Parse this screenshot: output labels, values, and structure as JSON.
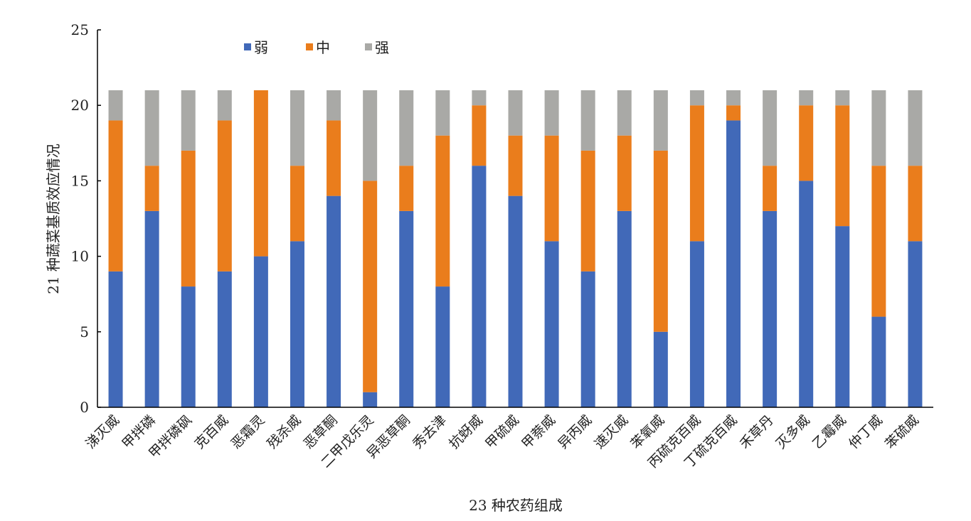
{
  "chart_data": {
    "type": "bar",
    "stacked": true,
    "title": "",
    "xlabel": "23 种农药组成",
    "ylabel": "21 种蔬菜基质效应情况",
    "ylim": [
      0,
      25
    ],
    "yticks": [
      0,
      5,
      10,
      15,
      20,
      25
    ],
    "grid": false,
    "legend_position": "top-left",
    "categories": [
      "涕灭威",
      "甲拌磷",
      "甲拌磷砜",
      "克百威",
      "恶霜灵",
      "残杀威",
      "恶草酮",
      "二甲戊乐灵",
      "异恶草酮",
      "秀去津",
      "抗蚜威",
      "甲硫威",
      "甲萘威",
      "异丙威",
      "速灭威",
      "苯氧威",
      "丙硫克百威",
      "丁硫克百威",
      "禾草丹",
      "灭多威",
      "乙霉威",
      "仲丁威",
      "苯硫威"
    ],
    "series": [
      {
        "name": "弱",
        "color": "#4169b8",
        "values": [
          9,
          13,
          8,
          9,
          10,
          11,
          14,
          1,
          13,
          8,
          16,
          14,
          11,
          9,
          13,
          5,
          11,
          19,
          13,
          15,
          12,
          6,
          11
        ]
      },
      {
        "name": "中",
        "color": "#ea7d1c",
        "values": [
          10,
          3,
          9,
          10,
          11,
          5,
          5,
          14,
          3,
          10,
          4,
          4,
          7,
          8,
          5,
          12,
          9,
          1,
          3,
          5,
          8,
          10,
          5
        ]
      },
      {
        "name": "强",
        "color": "#a9a9a6",
        "values": [
          2,
          5,
          4,
          2,
          0,
          5,
          2,
          6,
          5,
          3,
          1,
          3,
          3,
          4,
          3,
          4,
          1,
          1,
          5,
          1,
          1,
          5,
          5
        ]
      }
    ]
  }
}
